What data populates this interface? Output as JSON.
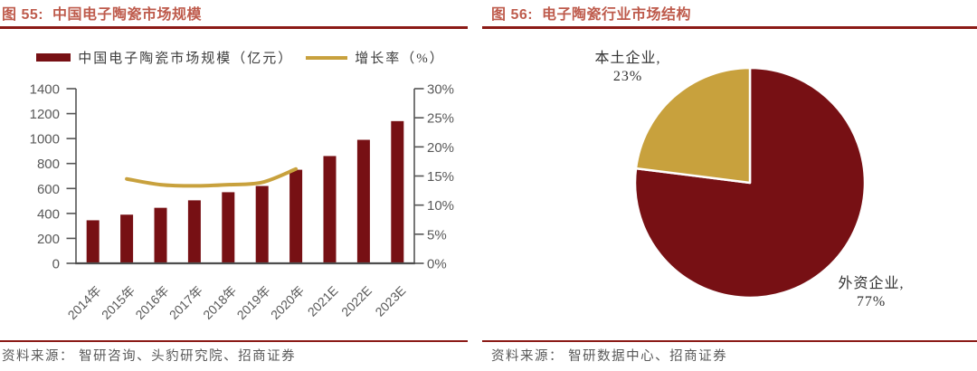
{
  "colors": {
    "background": "#FFFFFF",
    "maroon": "#771014",
    "gold": "#C8A13D",
    "title_text": "#BE5B4C",
    "rule": "#8B1A16",
    "axis_text": "#595959",
    "axis_line": "#555555",
    "legend_text": "#3D3D3D",
    "source_text": "#595959",
    "pie_label_text": "#333333"
  },
  "fig55": {
    "title": "图 55:  中国电子陶瓷市场规模",
    "legend_bar_label": "中国电子陶瓷市场规模（亿元）",
    "legend_line_label": "增长率（%）",
    "source": "资料来源： 智研咨询、头豹研究院、招商证券"
  },
  "fig56": {
    "title": "图 56:  电子陶瓷行业市场结构",
    "label_domestic_line1": "本土企业,",
    "label_domestic_line2": "23%",
    "label_foreign_line1": "外资企业,",
    "label_foreign_line2": "77%",
    "source": "资料来源： 智研数据中心、招商证券"
  },
  "chart_data": [
    {
      "type": "bar",
      "subtype": "combo-bar-line-dual-axis",
      "title": "图 55: 中国电子陶瓷市场规模",
      "categories": [
        "2014年",
        "2015年",
        "2016年",
        "2017年",
        "2018年",
        "2019年",
        "2020年",
        "2021E",
        "2022E",
        "2023E"
      ],
      "series": [
        {
          "name": "中国电子陶瓷市场规模（亿元）",
          "type": "bar",
          "axis": "left",
          "color": "maroon",
          "values": [
            345,
            390,
            445,
            505,
            570,
            620,
            750,
            860,
            990,
            1140
          ]
        },
        {
          "name": "增长率（%）",
          "type": "line",
          "axis": "right",
          "color": "gold",
          "values": [
            null,
            14.5,
            13.5,
            13.3,
            13.5,
            13.9,
            16.2,
            null,
            null,
            null
          ]
        }
      ],
      "left_axis": {
        "min": 0,
        "max": 1400,
        "step": 200,
        "tick_labels": [
          "0",
          "200",
          "400",
          "600",
          "800",
          "1000",
          "1200",
          "1400"
        ]
      },
      "right_axis": {
        "min": 0,
        "max": 30,
        "step": 5,
        "tick_labels": [
          "0%",
          "5%",
          "10%",
          "15%",
          "20%",
          "25%",
          "30%"
        ]
      },
      "grid": false,
      "legend_position": "top",
      "x_label_rotation_deg": -45,
      "source": "资料来源： 智研咨询、头豹研究院、招商证券"
    },
    {
      "type": "pie",
      "title": "图 56: 电子陶瓷行业市场结构",
      "slices": [
        {
          "label": "外资企业",
          "value": 77,
          "color": "maroon",
          "data_label": "外资企业, 77%"
        },
        {
          "label": "本土企业",
          "value": 23,
          "color": "gold",
          "data_label": "本土企业, 23%"
        }
      ],
      "start_angle_deg": 0,
      "direction": "clockwise",
      "legend_position": "none",
      "source": "资料来源： 智研数据中心、招商证券"
    }
  ]
}
